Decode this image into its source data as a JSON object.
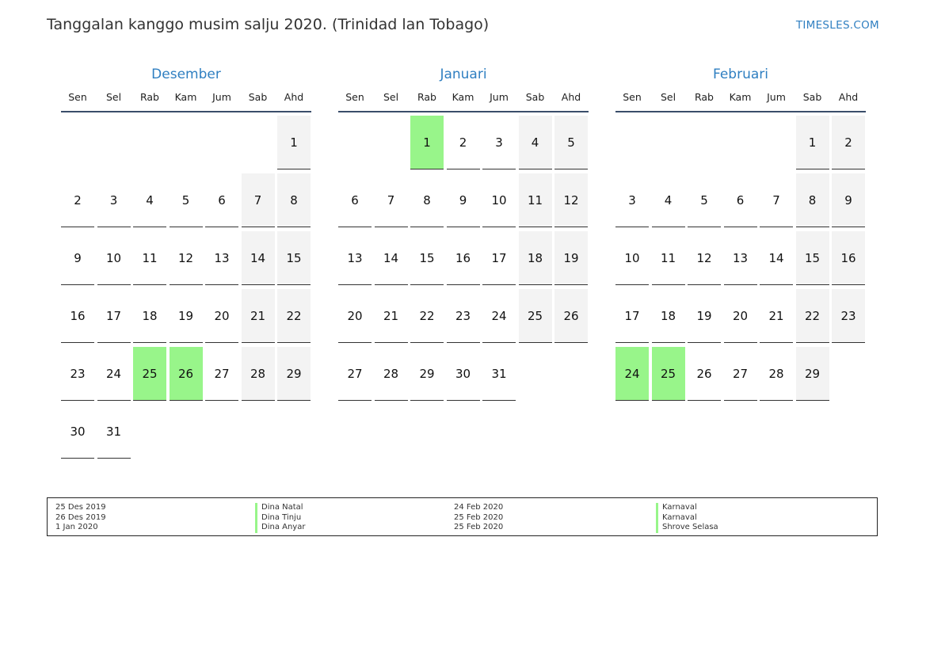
{
  "header": {
    "title": "Tanggalan kanggo musim salju 2020. (Trinidad lan Tobago)",
    "site": "TIMESLES.COM"
  },
  "colors": {
    "accent": "#2f7fc1",
    "holiday": "#98f58a",
    "weekend": "#f3f3f3"
  },
  "weekdays": [
    "Sen",
    "Sel",
    "Rab",
    "Kam",
    "Jum",
    "Sab",
    "Ahd"
  ],
  "months": [
    {
      "name": "Desember",
      "first_weekday": 6,
      "days": 31,
      "holidays": [
        25,
        26
      ]
    },
    {
      "name": "Januari",
      "first_weekday": 2,
      "days": 31,
      "holidays": [
        1
      ]
    },
    {
      "name": "Februari",
      "first_weekday": 5,
      "days": 29,
      "holidays": [
        24,
        25
      ]
    }
  ],
  "legend": [
    [
      {
        "date": "25 Des 2019",
        "name": "Dina Natal"
      },
      {
        "date": "26 Des 2019",
        "name": "Dina Tinju"
      },
      {
        "date": "1 Jan 2020",
        "name": "Dina Anyar"
      }
    ],
    [
      {
        "date": "24 Feb 2020",
        "name": "Karnaval"
      },
      {
        "date": "25 Feb 2020",
        "name": "Karnaval"
      },
      {
        "date": "25 Feb 2020",
        "name": "Shrove Selasa"
      }
    ]
  ]
}
